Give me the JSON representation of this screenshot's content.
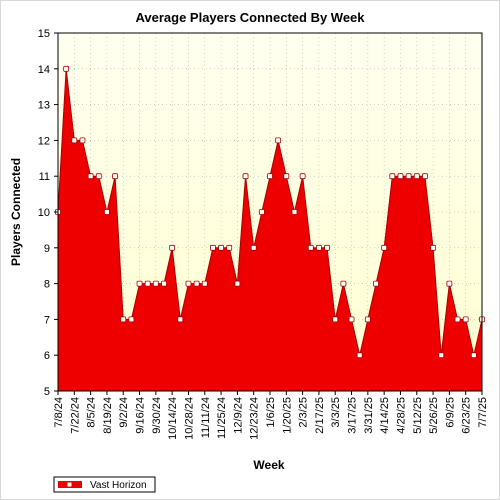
{
  "chart_data": {
    "type": "area",
    "title": "Average Players Connected By Week",
    "xlabel": "Week",
    "ylabel": "Players Connected",
    "ylim": [
      5,
      15
    ],
    "yticks": [
      5,
      6,
      7,
      8,
      9,
      10,
      11,
      12,
      13,
      14,
      15
    ],
    "grid": true,
    "legend_position": "bottom-left",
    "colors": {
      "area_fill": "#ee0000",
      "line": "#aa0000",
      "marker_fill": "#ffffff",
      "background_top": "#fffff0",
      "background_bottom": "#ffffd0"
    },
    "x_tick_labels": [
      "7/8/24",
      "7/22/24",
      "8/5/24",
      "8/19/24",
      "9/2/24",
      "9/16/24",
      "9/30/24",
      "10/14/24",
      "10/28/24",
      "11/11/24",
      "11/25/24",
      "12/9/24",
      "12/23/24",
      "1/6/25",
      "1/20/25",
      "2/3/25",
      "2/17/25",
      "3/3/25",
      "3/17/25",
      "3/31/25",
      "4/14/25",
      "4/28/25",
      "5/12/25",
      "5/26/25",
      "6/9/25",
      "6/23/25",
      "7/7/25"
    ],
    "series": [
      {
        "name": "Vast Horizon",
        "values": [
          10,
          14,
          12,
          12,
          11,
          11,
          10,
          11,
          7,
          7,
          8,
          8,
          8,
          8,
          9,
          7,
          8,
          8,
          8,
          9,
          9,
          9,
          8,
          11,
          9,
          10,
          11,
          12,
          11,
          10,
          11,
          9,
          9,
          9,
          7,
          8,
          7,
          6,
          7,
          8,
          9,
          11,
          11,
          11,
          11,
          11,
          9,
          6,
          8,
          7,
          7,
          6,
          7
        ]
      }
    ]
  }
}
